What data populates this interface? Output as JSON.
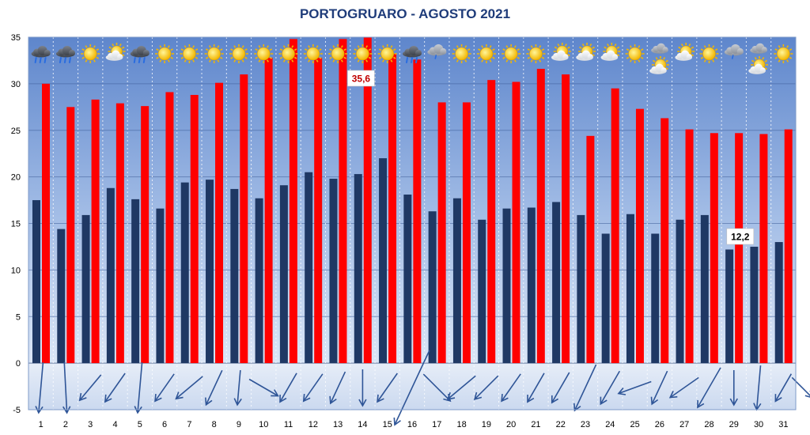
{
  "chart_data": {
    "type": "bar",
    "title": "PORTOGRUARO - AGOSTO 2021",
    "categories": [
      "1",
      "2",
      "3",
      "4",
      "5",
      "6",
      "7",
      "8",
      "9",
      "10",
      "11",
      "12",
      "13",
      "14",
      "15",
      "16",
      "17",
      "18",
      "19",
      "20",
      "21",
      "22",
      "23",
      "24",
      "25",
      "26",
      "27",
      "28",
      "29",
      "30",
      "31"
    ],
    "ylim": [
      -5,
      35
    ],
    "yticks": [
      -5,
      0,
      5,
      10,
      15,
      20,
      25,
      30,
      35
    ],
    "grid": true,
    "series": [
      {
        "key": "tmin",
        "color": "#1f3864",
        "values": [
          17.5,
          14.4,
          15.9,
          18.8,
          17.6,
          16.6,
          19.4,
          19.7,
          18.7,
          17.7,
          19.1,
          20.5,
          19.8,
          20.3,
          22.0,
          18.1,
          16.3,
          17.7,
          15.4,
          16.6,
          16.7,
          17.3,
          15.9,
          13.9,
          16.0,
          13.9,
          15.4,
          15.9,
          12.2,
          12.5,
          13.0
        ]
      },
      {
        "key": "tmax",
        "color": "#ff0000",
        "values": [
          30.0,
          27.5,
          28.3,
          27.9,
          27.6,
          29.1,
          28.8,
          30.1,
          31.0,
          32.8,
          34.8,
          32.8,
          34.8,
          35.6,
          33.2,
          32.6,
          28.0,
          28.0,
          30.4,
          30.2,
          31.6,
          31.0,
          24.4,
          29.5,
          27.3,
          26.3,
          25.1,
          24.7,
          24.7,
          24.6,
          25.1
        ]
      }
    ],
    "callouts": [
      {
        "label": "35,6",
        "day": "14",
        "series": "tmax",
        "color": "#c00000"
      },
      {
        "label": "12,2",
        "day": "29",
        "series": "tmin",
        "color": "#000000"
      }
    ],
    "weather_icons": [
      "rain",
      "rain",
      "sun",
      "partly-cloudy",
      "rain",
      "sun",
      "sun",
      "sun",
      "sun",
      "sun",
      "sun",
      "sun",
      "sun",
      "sun",
      "sun",
      "rain",
      "cloudy",
      "sun",
      "sun",
      "sun",
      "sun",
      "partly-cloudy",
      "partly-cloudy",
      "partly-cloudy",
      "sun",
      "cloudy-partly-cloudy",
      "partly-cloudy",
      "sun",
      "cloudy",
      "cloudy-partly-cloudy",
      "sun"
    ],
    "wind_arrows": [
      {
        "angle": 5,
        "mag": 1.0
      },
      {
        "angle": -3,
        "mag": 1.0
      },
      {
        "angle": 40,
        "mag": 0.45
      },
      {
        "angle": 35,
        "mag": 0.5
      },
      {
        "angle": 5,
        "mag": 1.0
      },
      {
        "angle": 35,
        "mag": 0.45
      },
      {
        "angle": 50,
        "mag": 0.5
      },
      {
        "angle": 25,
        "mag": 0.6
      },
      {
        "angle": 5,
        "mag": 0.5
      },
      {
        "angle": -60,
        "mag": 0.45
      },
      {
        "angle": 30,
        "mag": 0.45
      },
      {
        "angle": 35,
        "mag": 0.45
      },
      {
        "angle": 25,
        "mag": 0.5
      },
      {
        "angle": 0,
        "mag": 0.55
      },
      {
        "angle": 35,
        "mag": 0.5
      },
      {
        "angle": 25,
        "mag": 2.0
      },
      {
        "angle": -45,
        "mag": 0.6
      },
      {
        "angle": 50,
        "mag": 0.55
      },
      {
        "angle": 45,
        "mag": 0.45
      },
      {
        "angle": 35,
        "mag": 0.45
      },
      {
        "angle": 30,
        "mag": 0.45
      },
      {
        "angle": 30,
        "mag": 0.5
      },
      {
        "angle": 25,
        "mag": 1.0
      },
      {
        "angle": 30,
        "mag": 0.6
      },
      {
        "angle": 70,
        "mag": 0.5
      },
      {
        "angle": 25,
        "mag": 0.55
      },
      {
        "angle": 55,
        "mag": 0.5
      },
      {
        "angle": 30,
        "mag": 0.85
      },
      {
        "angle": 0,
        "mag": 0.5
      },
      {
        "angle": 5,
        "mag": 0.8
      },
      {
        "angle": 30,
        "mag": 0.4
      }
    ],
    "corner_arrow": {
      "angle": -45,
      "mag": 0.3
    }
  }
}
